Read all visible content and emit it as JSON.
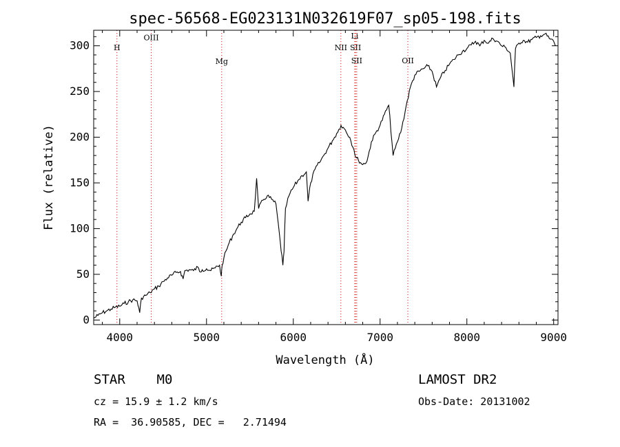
{
  "chart_data": {
    "type": "line",
    "title": "spec-56568-EG023131N032619F07_sp05-198.fits",
    "xlabel": "Wavelength (Å)",
    "ylabel": "Flux (relative)",
    "xlim": [
      3700,
      9050
    ],
    "ylim": [
      -5,
      317
    ],
    "xticks": [
      4000,
      5000,
      6000,
      7000,
      8000,
      9000
    ],
    "yticks": [
      0,
      50,
      100,
      150,
      200,
      250,
      300
    ],
    "line_color": "#000000",
    "marker_color": "#cc0000",
    "lines": [
      {
        "label": "H",
        "x": 3968,
        "label_y": 295
      },
      {
        "label": "OIII",
        "x": 4363,
        "label_y": 306
      },
      {
        "label": "Mg",
        "x": 5175,
        "label_y": 280
      },
      {
        "label": "NII",
        "x": 6548,
        "label_y": 295
      },
      {
        "label": "Li",
        "x": 6708,
        "label_y": 308
      },
      {
        "label": "SII",
        "x": 6717,
        "label_y": 295
      },
      {
        "label": "SII",
        "x": 6731,
        "label_y": 281
      },
      {
        "label": "OII",
        "x": 7320,
        "label_y": 281
      }
    ],
    "x": [
      3700,
      3750,
      3800,
      3850,
      3900,
      3950,
      4000,
      4050,
      4100,
      4150,
      4200,
      4230,
      4250,
      4300,
      4350,
      4400,
      4450,
      4500,
      4550,
      4600,
      4650,
      4700,
      4730,
      4750,
      4800,
      4850,
      4900,
      4920,
      4950,
      5000,
      5050,
      5100,
      5150,
      5170,
      5180,
      5200,
      5250,
      5300,
      5350,
      5400,
      5450,
      5500,
      5550,
      5577,
      5600,
      5650,
      5700,
      5750,
      5800,
      5850,
      5880,
      5893,
      5910,
      5950,
      6000,
      6050,
      6100,
      6150,
      6170,
      6200,
      6250,
      6300,
      6350,
      6400,
      6450,
      6500,
      6550,
      6600,
      6650,
      6700,
      6720,
      6750,
      6800,
      6850,
      6900,
      6950,
      7000,
      7050,
      7100,
      7150,
      7200,
      7250,
      7300,
      7350,
      7400,
      7450,
      7500,
      7550,
      7600,
      7650,
      7700,
      7750,
      7800,
      7850,
      7900,
      7950,
      8000,
      8050,
      8100,
      8150,
      8200,
      8250,
      8300,
      8350,
      8400,
      8450,
      8500,
      8542,
      8560,
      8600,
      8650,
      8700,
      8750,
      8800,
      8850,
      8900,
      8950,
      9000,
      9020
    ],
    "y": [
      2,
      5,
      8,
      10,
      12,
      14,
      15,
      18,
      20,
      22,
      21,
      8,
      24,
      27,
      30,
      34,
      37,
      42,
      46,
      49,
      52,
      53,
      45,
      54,
      55,
      54,
      58,
      53,
      55,
      56,
      54,
      57,
      60,
      48,
      60,
      68,
      82,
      92,
      100,
      107,
      112,
      116,
      119,
      155,
      122,
      131,
      136,
      132,
      127,
      85,
      60,
      75,
      122,
      136,
      145,
      152,
      158,
      162,
      130,
      150,
      165,
      172,
      180,
      188,
      196,
      204,
      213,
      208,
      200,
      186,
      178,
      175,
      170,
      174,
      195,
      205,
      213,
      225,
      235,
      180,
      195,
      210,
      234,
      255,
      268,
      272,
      275,
      278,
      272,
      255,
      266,
      273,
      280,
      285,
      290,
      294,
      297,
      301,
      305,
      300,
      306,
      303,
      308,
      305,
      300,
      298,
      292,
      255,
      297,
      303,
      306,
      304,
      307,
      309,
      311,
      313,
      308,
      305,
      300
    ]
  },
  "info": {
    "object": "STAR    M0",
    "survey": "LAMOST DR2",
    "cz": "cz = 15.9 ± 1.2 km/s",
    "obs_date": "Obs-Date: 20131002",
    "coords": "RA =  36.90585, DEC =   2.71494"
  }
}
